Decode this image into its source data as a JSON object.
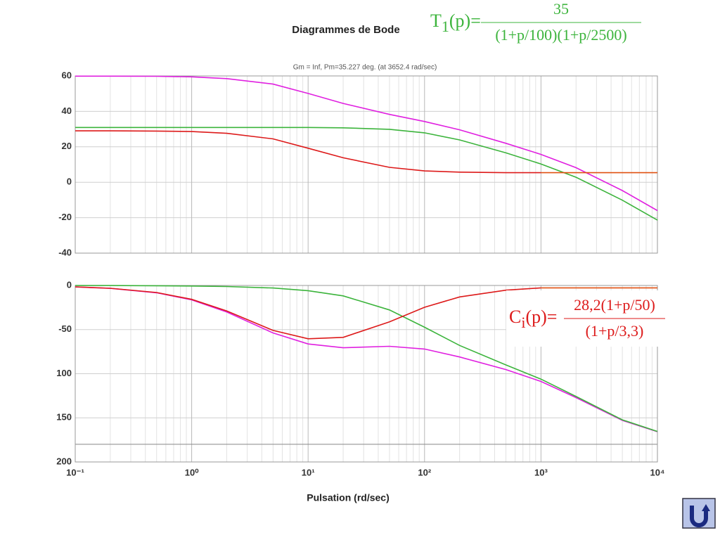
{
  "chart_data": [
    {
      "type": "line",
      "title": "Diagrammes de Bode",
      "subtitle": "Gm = Inf, Pm=35.227 deg. (at 3652.4 rad/sec)",
      "formula": {
        "symbol": "T",
        "subscript": "1",
        "argument": "(p)=",
        "numerator": "35",
        "denominator": "(1+p/100)(1+p/2500)",
        "color": "#3cb43c"
      },
      "x": [
        0.1,
        0.2,
        0.5,
        1,
        2,
        5,
        10,
        20,
        50,
        100,
        200,
        500,
        1000,
        2000,
        5000,
        10000
      ],
      "series": [
        {
          "color": "#e020e0",
          "values": [
            59.9,
            59.9,
            59.8,
            59.5,
            58.5,
            55.4,
            50.1,
            44.5,
            38.3,
            34.3,
            29.6,
            22.0,
            15.7,
            8.2,
            -4.7,
            -16.0
          ]
        },
        {
          "color": "#3cb43c",
          "values": [
            30.9,
            30.9,
            30.9,
            30.9,
            30.9,
            30.9,
            30.9,
            30.7,
            29.9,
            27.9,
            23.9,
            16.6,
            10.3,
            2.8,
            -10.1,
            -21.4
          ]
        },
        {
          "color": "#dd1a1a",
          "values": [
            29.0,
            29.0,
            28.9,
            28.6,
            27.6,
            24.5,
            19.2,
            13.8,
            8.4,
            6.4,
            5.7,
            5.4,
            5.4,
            null,
            null,
            null
          ]
        },
        {
          "color": "#e05010",
          "values": [
            null,
            null,
            null,
            null,
            null,
            null,
            null,
            null,
            null,
            null,
            null,
            null,
            5.4,
            5.4,
            5.4,
            5.4
          ]
        }
      ],
      "xscale": "log",
      "xlim": [
        0.1,
        10000
      ],
      "xticks": [
        0.1,
        1,
        10,
        100,
        1000,
        10000
      ],
      "xtick_labels": false,
      "ylim": [
        -40,
        60
      ],
      "yticks": [
        -40,
        -20,
        0,
        20,
        40,
        60
      ],
      "grid": true
    },
    {
      "type": "line",
      "xlabel": "Pulsation (rd/sec)",
      "formula": {
        "symbol": "C",
        "subscript": "i",
        "argument": "(p)=",
        "numerator": "28,2(1+p/50)",
        "denominator": "(1+p/3,3)",
        "color": "#dd1a1a"
      },
      "x": [
        0.1,
        0.2,
        0.5,
        1,
        2,
        5,
        10,
        20,
        50,
        100,
        200,
        500,
        1000,
        2000,
        5000,
        10000
      ],
      "series": [
        {
          "color": "#e020e0",
          "values": [
            -1.7,
            -3.3,
            -8.3,
            -16.3,
            -30.1,
            -53.8,
            -66.3,
            -70.6,
            -68.9,
            -72.0,
            -81.0,
            -95.3,
            -108.8,
            -127.1,
            -152.9,
            -165.7
          ]
        },
        {
          "color": "#3cb43c",
          "values": [
            -0.06,
            -0.1,
            -0.3,
            -0.6,
            -1.2,
            -2.9,
            -5.9,
            -11.8,
            -27.7,
            -47.3,
            -68.0,
            -90.0,
            -106.1,
            -125.8,
            -152.3,
            -165.4
          ]
        },
        {
          "color": "#dd1a1a",
          "values": [
            -1.6,
            -3.2,
            -8.0,
            -15.7,
            -28.9,
            -50.9,
            -60.4,
            -58.8,
            -41.2,
            -24.7,
            -13.0,
            -5.3,
            -2.7,
            null,
            null,
            null
          ]
        },
        {
          "color": "#e05010",
          "values": [
            null,
            null,
            null,
            null,
            null,
            null,
            null,
            null,
            null,
            null,
            null,
            null,
            -2.7,
            -2.7,
            -2.7,
            -2.7
          ]
        }
      ],
      "xscale": "log",
      "xlim": [
        0.1,
        10000
      ],
      "xticks": [
        {
          "value": 0.1,
          "label": "10⁻¹"
        },
        {
          "value": 1,
          "label": "10⁰"
        },
        {
          "value": 10,
          "label": "10¹"
        },
        {
          "value": 100,
          "label": "10²"
        },
        {
          "value": 1000,
          "label": "10³"
        },
        {
          "value": 10000,
          "label": "10⁴"
        }
      ],
      "xtick_labels": true,
      "ylim": [
        -200,
        0
      ],
      "yticks": [
        {
          "value": -200,
          "label": "200"
        },
        {
          "value": -150,
          "label": "150"
        },
        {
          "value": -100,
          "label": "100"
        },
        -50,
        0
      ],
      "hlines": [
        -180
      ],
      "grid": true
    }
  ]
}
